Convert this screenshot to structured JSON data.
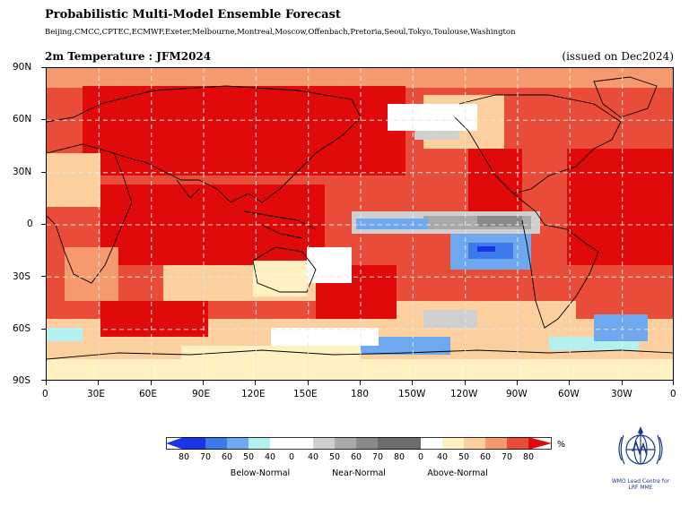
{
  "header": {
    "title": "Probabilistic Multi-Model Ensemble Forecast",
    "centres": "Beijing,CMCC,CPTEC,ECMWF,Exeter,Melbourne,Montreal,Moscow,Offenbach,Pretoria,Seoul,Tokyo,Toulouse,Washington",
    "variable_title": "2m Temperature : JFM2024",
    "issued": "(issued on Dec2024)"
  },
  "map": {
    "lat_labels": [
      "90N",
      "60N",
      "30N",
      "0",
      "30S",
      "60S",
      "90S"
    ],
    "lon_labels": [
      "0",
      "30E",
      "60E",
      "90E",
      "120E",
      "150E",
      "180",
      "150W",
      "120W",
      "90W",
      "60W",
      "30W",
      "0"
    ]
  },
  "legend": {
    "below_colors": [
      "#1a33e6",
      "#3b7ae8",
      "#6ea8ee",
      "#b3f0f0"
    ],
    "near_colors": [
      "#ffffff",
      "#cfcfcf",
      "#a9a9a9",
      "#8a8a8a",
      "#6c6c6c"
    ],
    "above_colors": [
      "#fff1c2",
      "#fbd09e",
      "#f59a6e",
      "#e94d3a",
      "#e00a0a"
    ],
    "numbers": [
      "80",
      "70",
      "60",
      "50",
      "40",
      "0",
      "40",
      "50",
      "60",
      "70",
      "80",
      "0",
      "40",
      "50",
      "60",
      "70",
      "80"
    ],
    "categories": [
      "Below-Normal",
      "Near-Normal",
      "Above-Normal"
    ],
    "unit": "%"
  },
  "logo": {
    "text_line1": "WMO Lead Centre for",
    "text_line2": "LRF MME"
  }
}
